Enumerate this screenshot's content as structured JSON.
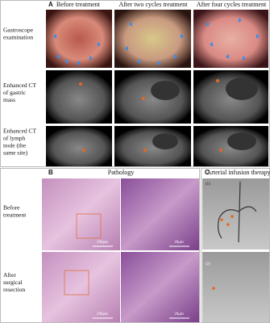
{
  "panel_a": {
    "letter": "A",
    "columns": [
      "Before treatment",
      "After two cycles treatment",
      "After four cycles treatment"
    ],
    "rows": [
      "Gastroscope examination",
      "Enhanced CT of gastric mass",
      "Enhanced CT of lymph node (the same site)"
    ]
  },
  "panel_b": {
    "letter": "B",
    "title": "Pathology",
    "rows": [
      "Before treatment",
      "After surgical resection"
    ],
    "scale_bars": [
      "200μm",
      "20μm"
    ]
  },
  "panel_c": {
    "letter": "C",
    "title": "Arterial infusion therapy",
    "labels": [
      "(1)",
      "(2)"
    ]
  }
}
